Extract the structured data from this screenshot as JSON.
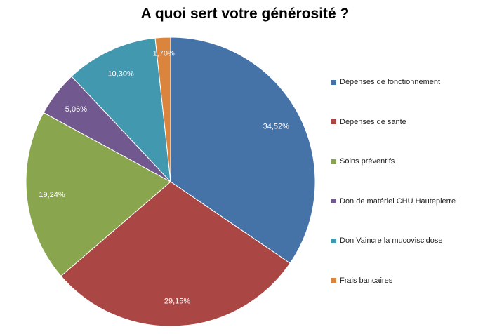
{
  "chart_data": {
    "type": "pie",
    "title": "A quoi sert votre générosité ?",
    "legend_position": "right",
    "slices": [
      {
        "label": "Dépenses de fonctionnement",
        "value": 34.52,
        "value_label": "34,52%",
        "color": "#4572A7"
      },
      {
        "label": "Dépenses de santé",
        "value": 29.15,
        "value_label": "29,15%",
        "color": "#AA4643"
      },
      {
        "label": "Soins préventifs",
        "value": 19.24,
        "value_label": "19,24%",
        "color": "#89A54E"
      },
      {
        "label": "Don de matériel CHU Hautepierre",
        "value": 5.06,
        "value_label": "5,06%",
        "color": "#71588F"
      },
      {
        "label": "Don Vaincre la mucoviscidose",
        "value": 10.3,
        "value_label": "10,30%",
        "color": "#4198AF"
      },
      {
        "label": "Frais bancaires",
        "value": 1.7,
        "value_label": "1,70%",
        "color": "#DB843D"
      }
    ]
  }
}
